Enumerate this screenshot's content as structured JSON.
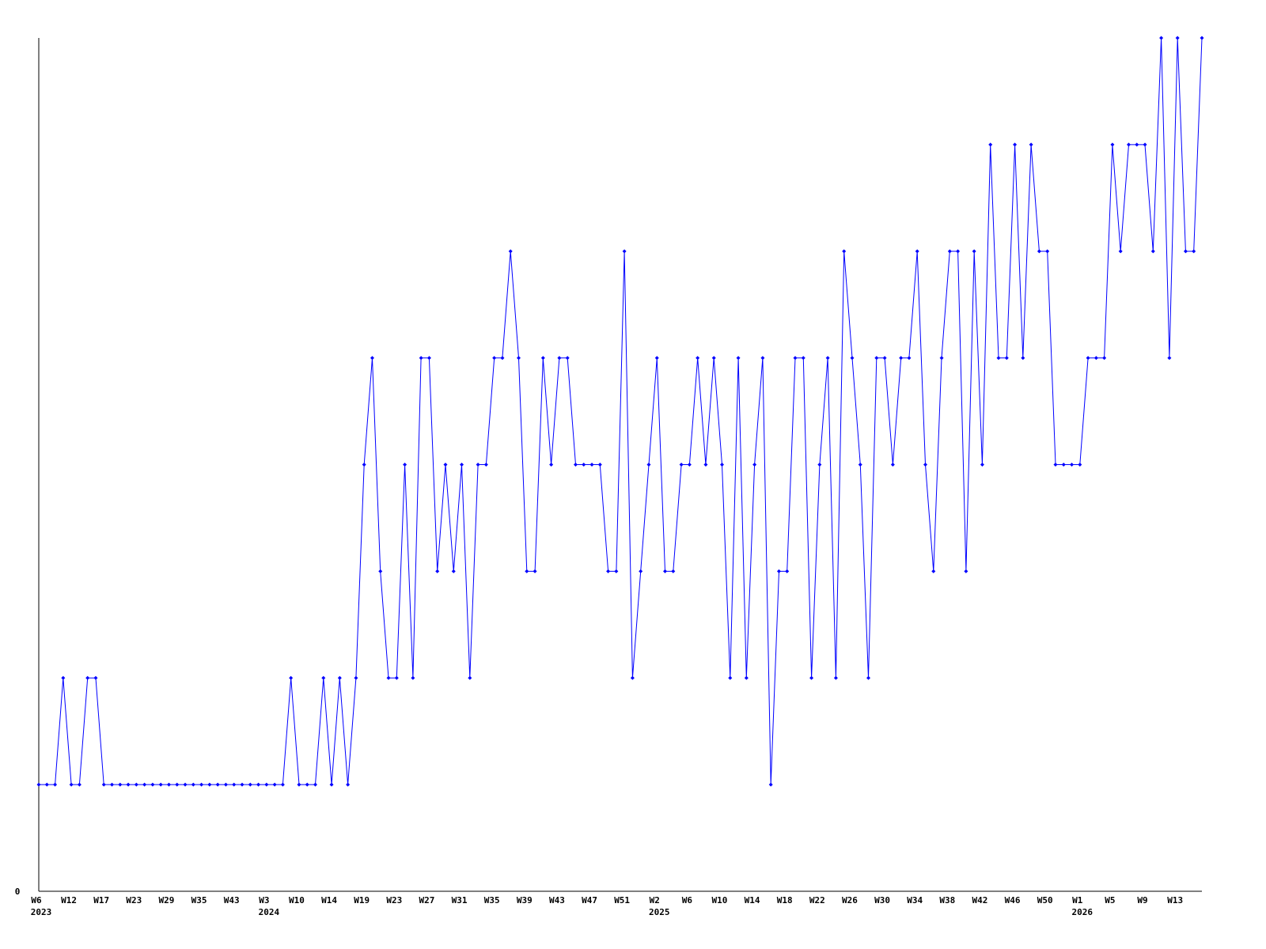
{
  "chart_data": {
    "type": "line",
    "title": "",
    "xlabel": "",
    "ylabel": "",
    "ylim": [
      0,
      8
    ],
    "y_tick_labels": [
      "0"
    ],
    "grid": false,
    "legend": "none",
    "line_color": "#0000ff",
    "axis_color": "#000000",
    "x_tick_every": 4,
    "x_tick_labels": [
      "W6",
      "W12",
      "W17",
      "W23",
      "W29",
      "W35",
      "W43",
      "W3",
      "W10",
      "W14",
      "W19",
      "W23",
      "W27",
      "W31",
      "W35",
      "W39",
      "W43",
      "W47",
      "W51",
      "W2",
      "W6",
      "W10",
      "W14",
      "W18",
      "W22",
      "W26",
      "W30",
      "W34",
      "W38",
      "W42",
      "W46",
      "W50",
      "W1",
      "W5",
      "W9",
      "W13"
    ],
    "year_labels": [
      {
        "tick_index": 0,
        "label": "2023"
      },
      {
        "tick_index": 7,
        "label": "2024"
      },
      {
        "tick_index": 19,
        "label": "2025"
      },
      {
        "tick_index": 32,
        "label": "2026"
      }
    ],
    "values": [
      1,
      1,
      1,
      2,
      1,
      1,
      2,
      2,
      1,
      1,
      1,
      1,
      1,
      1,
      1,
      1,
      1,
      1,
      1,
      1,
      1,
      1,
      1,
      1,
      1,
      1,
      1,
      1,
      1,
      1,
      1,
      2,
      1,
      1,
      1,
      2,
      1,
      2,
      1,
      2,
      4,
      5,
      3,
      2,
      2,
      4,
      2,
      5,
      5,
      3,
      4,
      3,
      4,
      2,
      4,
      4,
      5,
      5,
      6,
      5,
      3,
      3,
      5,
      4,
      5,
      5,
      4,
      4,
      4,
      4,
      3,
      3,
      6,
      2,
      3,
      4,
      5,
      3,
      3,
      4,
      4,
      5,
      4,
      5,
      4,
      2,
      5,
      2,
      4,
      5,
      1,
      3,
      3,
      5,
      5,
      2,
      4,
      5,
      2,
      6,
      5,
      4,
      2,
      5,
      5,
      4,
      5,
      5,
      6,
      4,
      3,
      5,
      6,
      6,
      3,
      6,
      4,
      7,
      5,
      5,
      7,
      5,
      7,
      6,
      6,
      4,
      4,
      4,
      4,
      5,
      5,
      5,
      7,
      6,
      7,
      7,
      7,
      6,
      8,
      5,
      8,
      6,
      6,
      8
    ]
  }
}
